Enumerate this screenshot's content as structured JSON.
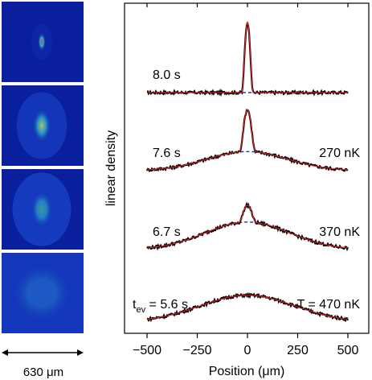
{
  "figure": {
    "absorption_images": {
      "panels": [
        {
          "label": "8.0 s",
          "peak_color": "#e8334a"
        },
        {
          "label": "7.6 s",
          "peak_color": "#d8e838"
        },
        {
          "label": "6.7 s",
          "peak_color": "#56d86a"
        },
        {
          "label": "5.6 s",
          "peak_color": "#3d9be6"
        }
      ],
      "background_color": "#0a1f9e",
      "scale_bar_text": "630 μm"
    },
    "colors": {
      "data": "#000000",
      "fit_total": "#d42020",
      "fit_thermal": "#2030d0"
    }
  },
  "chart_data": {
    "type": "line",
    "xlabel": "Position (μm)",
    "ylabel": "linear density",
    "xlim": [
      -600,
      600
    ],
    "x_ticks": [
      -500,
      -250,
      0,
      250,
      500
    ],
    "x_tick_labels": [
      "−500",
      "−250",
      "0",
      "250",
      "500"
    ],
    "traces": [
      {
        "time_label": "8.0 s",
        "temp_label": "",
        "bec_height": 0.92,
        "bec_width": 20,
        "thermal_height": 0.0,
        "thermal_width": 230
      },
      {
        "time_label": "7.6 s",
        "temp_label": "270 nK",
        "bec_height": 0.55,
        "bec_width": 28,
        "thermal_height": 0.25,
        "thermal_width": 200
      },
      {
        "time_label": "6.7 s",
        "temp_label": "370 nK",
        "bec_height": 0.22,
        "bec_width": 30,
        "thermal_height": 0.36,
        "thermal_width": 210
      },
      {
        "time_label": "t",
        "time_sub": "ev",
        "time_rest": " = 5.6 s",
        "temp_label": "T = 470 nK",
        "bec_height": 0.0,
        "bec_width": 30,
        "thermal_height": 0.35,
        "thermal_width": 235
      }
    ]
  }
}
